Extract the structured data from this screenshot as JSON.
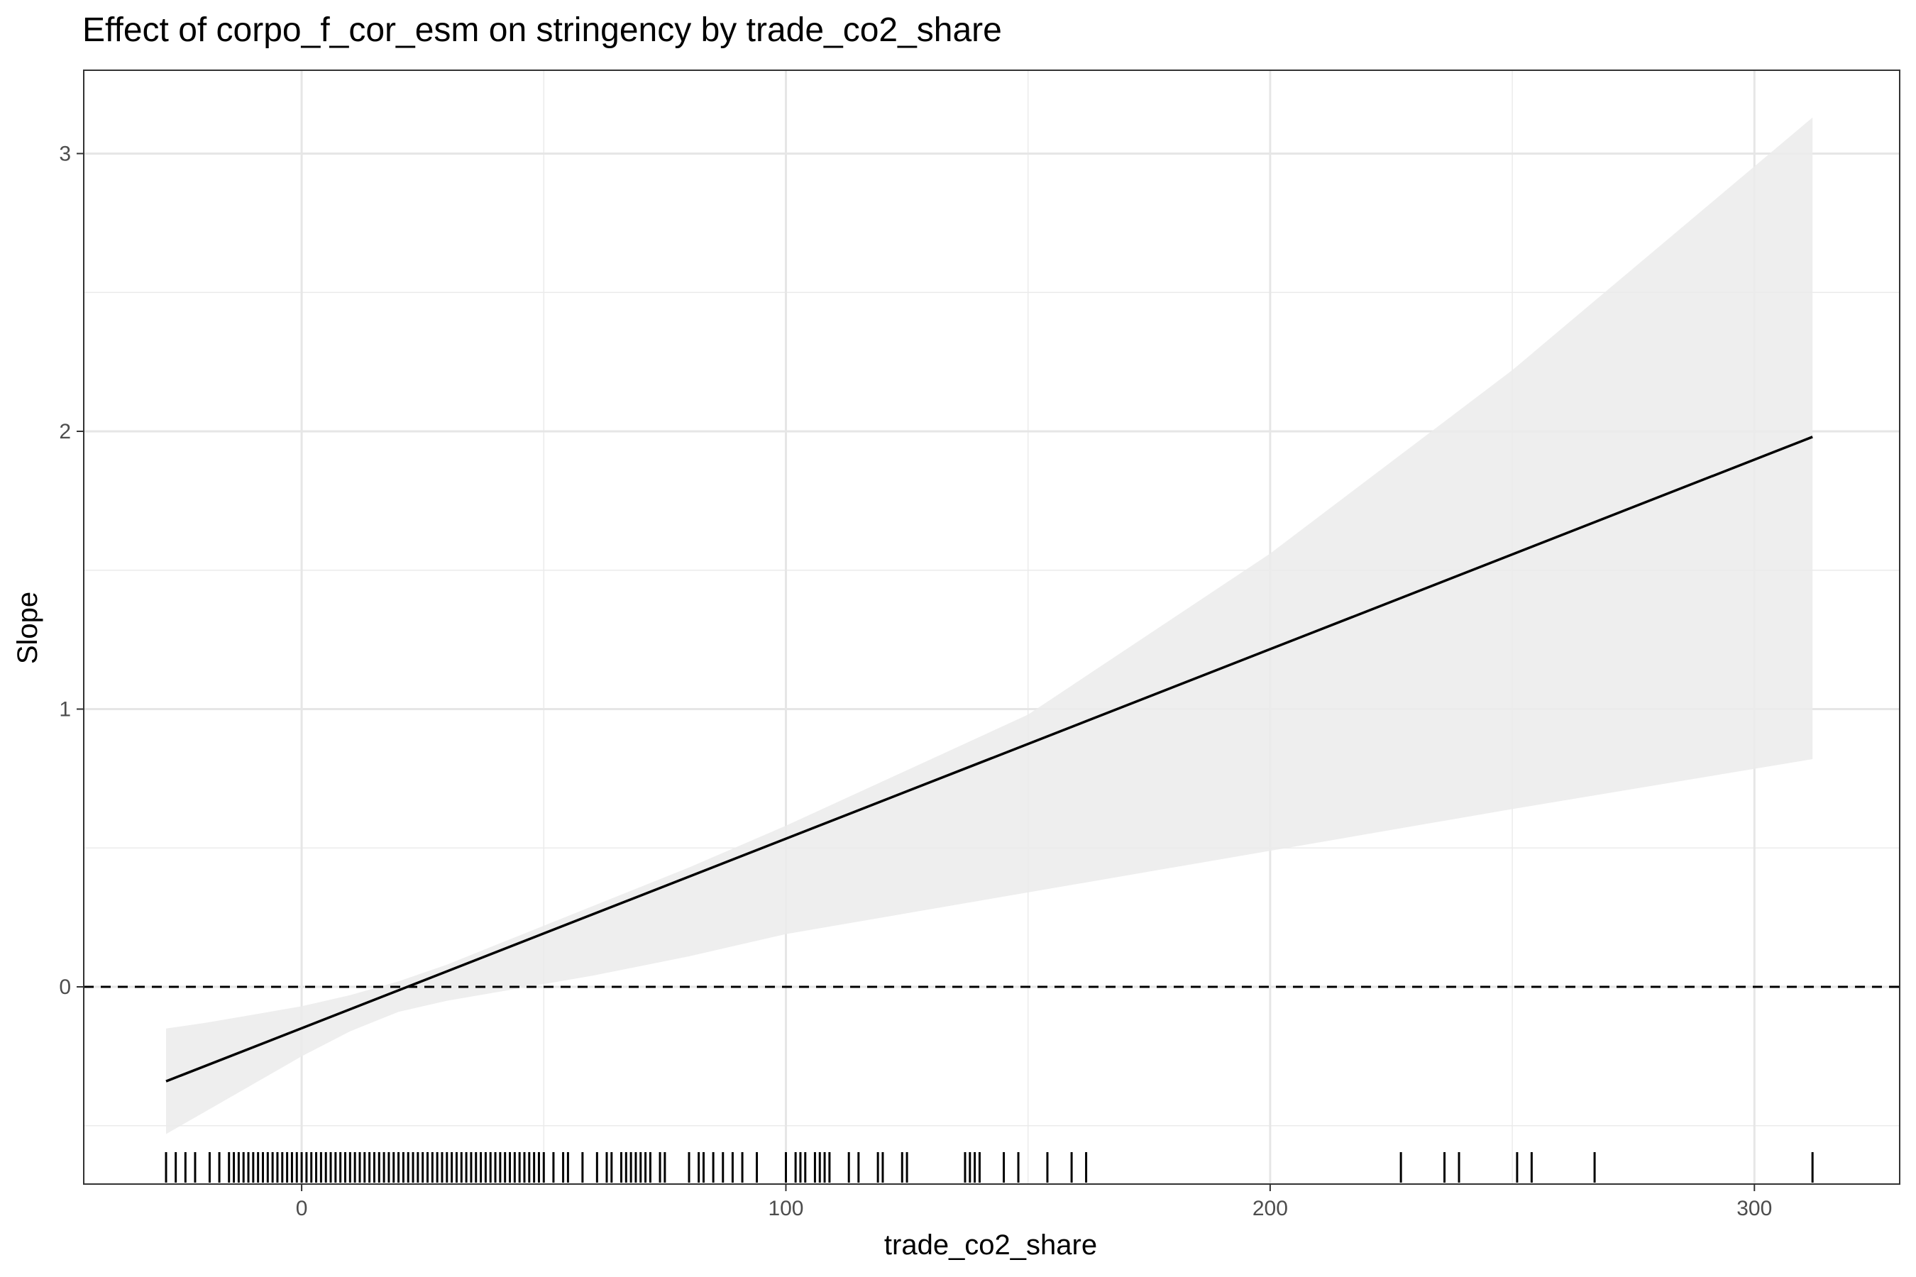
{
  "chart_data": {
    "type": "line",
    "title": "Effect of corpo_f_cor_esm on stringency by trade_co2_share",
    "xlabel": "trade_co2_share",
    "ylabel": "Slope",
    "xlim": [
      -45,
      330
    ],
    "ylim": [
      -0.71,
      3.3
    ],
    "x_ticks": [
      0,
      100,
      200,
      300
    ],
    "y_ticks": [
      0,
      1,
      2,
      3
    ],
    "x_tick_labels": [
      "0",
      "100",
      "200",
      "300"
    ],
    "y_tick_labels": [
      "0",
      "1",
      "2",
      "3"
    ],
    "x_minor": [
      -50,
      50,
      150,
      250
    ],
    "y_minor": [
      -0.5,
      0.5,
      1.5,
      2.5
    ],
    "grid": true,
    "series": [
      {
        "type": "line",
        "x": [
          -28,
          312
        ],
        "y": [
          -0.34,
          1.98
        ],
        "color": "#000000"
      }
    ],
    "confidence_band": {
      "x": [
        -28,
        -20,
        -10,
        0,
        10,
        20,
        30,
        40,
        50,
        60,
        80,
        100,
        150,
        200,
        250,
        312
      ],
      "upper": [
        -0.15,
        -0.13,
        -0.1,
        -0.07,
        -0.03,
        0.02,
        0.08,
        0.15,
        0.22,
        0.29,
        0.43,
        0.58,
        0.98,
        1.56,
        2.22,
        3.13
      ],
      "lower": [
        -0.53,
        -0.45,
        -0.35,
        -0.25,
        -0.16,
        -0.09,
        -0.05,
        -0.02,
        0.01,
        0.04,
        0.11,
        0.19,
        0.34,
        0.49,
        0.64,
        0.82
      ],
      "color": "#ebebeb"
    },
    "reference_line": {
      "y": 0,
      "style": "dashed",
      "color": "#000000"
    },
    "rug": {
      "x": [
        -28,
        -26,
        -24,
        -22,
        -19,
        -17,
        -15,
        -14,
        -13,
        -12,
        -11,
        -10,
        -9,
        -8,
        -7,
        -6,
        -5,
        -4,
        -3,
        -2,
        -1,
        0,
        1,
        2,
        3,
        4,
        5,
        6,
        7,
        8,
        9,
        10,
        11,
        12,
        13,
        14,
        15,
        16,
        17,
        18,
        19,
        20,
        21,
        22,
        23,
        24,
        25,
        26,
        27,
        28,
        29,
        30,
        31,
        32,
        33,
        34,
        35,
        36,
        37,
        38,
        39,
        40,
        41,
        42,
        43,
        44,
        45,
        46,
        47,
        48,
        49,
        50,
        52,
        54,
        55,
        58,
        61,
        63,
        64,
        66,
        67,
        68,
        69,
        70,
        71,
        72,
        74,
        75,
        80,
        82,
        83,
        85,
        87,
        89,
        91,
        94,
        100,
        102,
        103,
        104,
        106,
        107,
        108,
        109,
        113,
        115,
        119,
        120,
        124,
        125,
        137,
        138,
        139,
        140,
        145,
        148,
        154,
        159,
        162,
        227,
        236,
        239,
        251,
        254,
        267,
        312
      ],
      "color": "#000000"
    }
  }
}
